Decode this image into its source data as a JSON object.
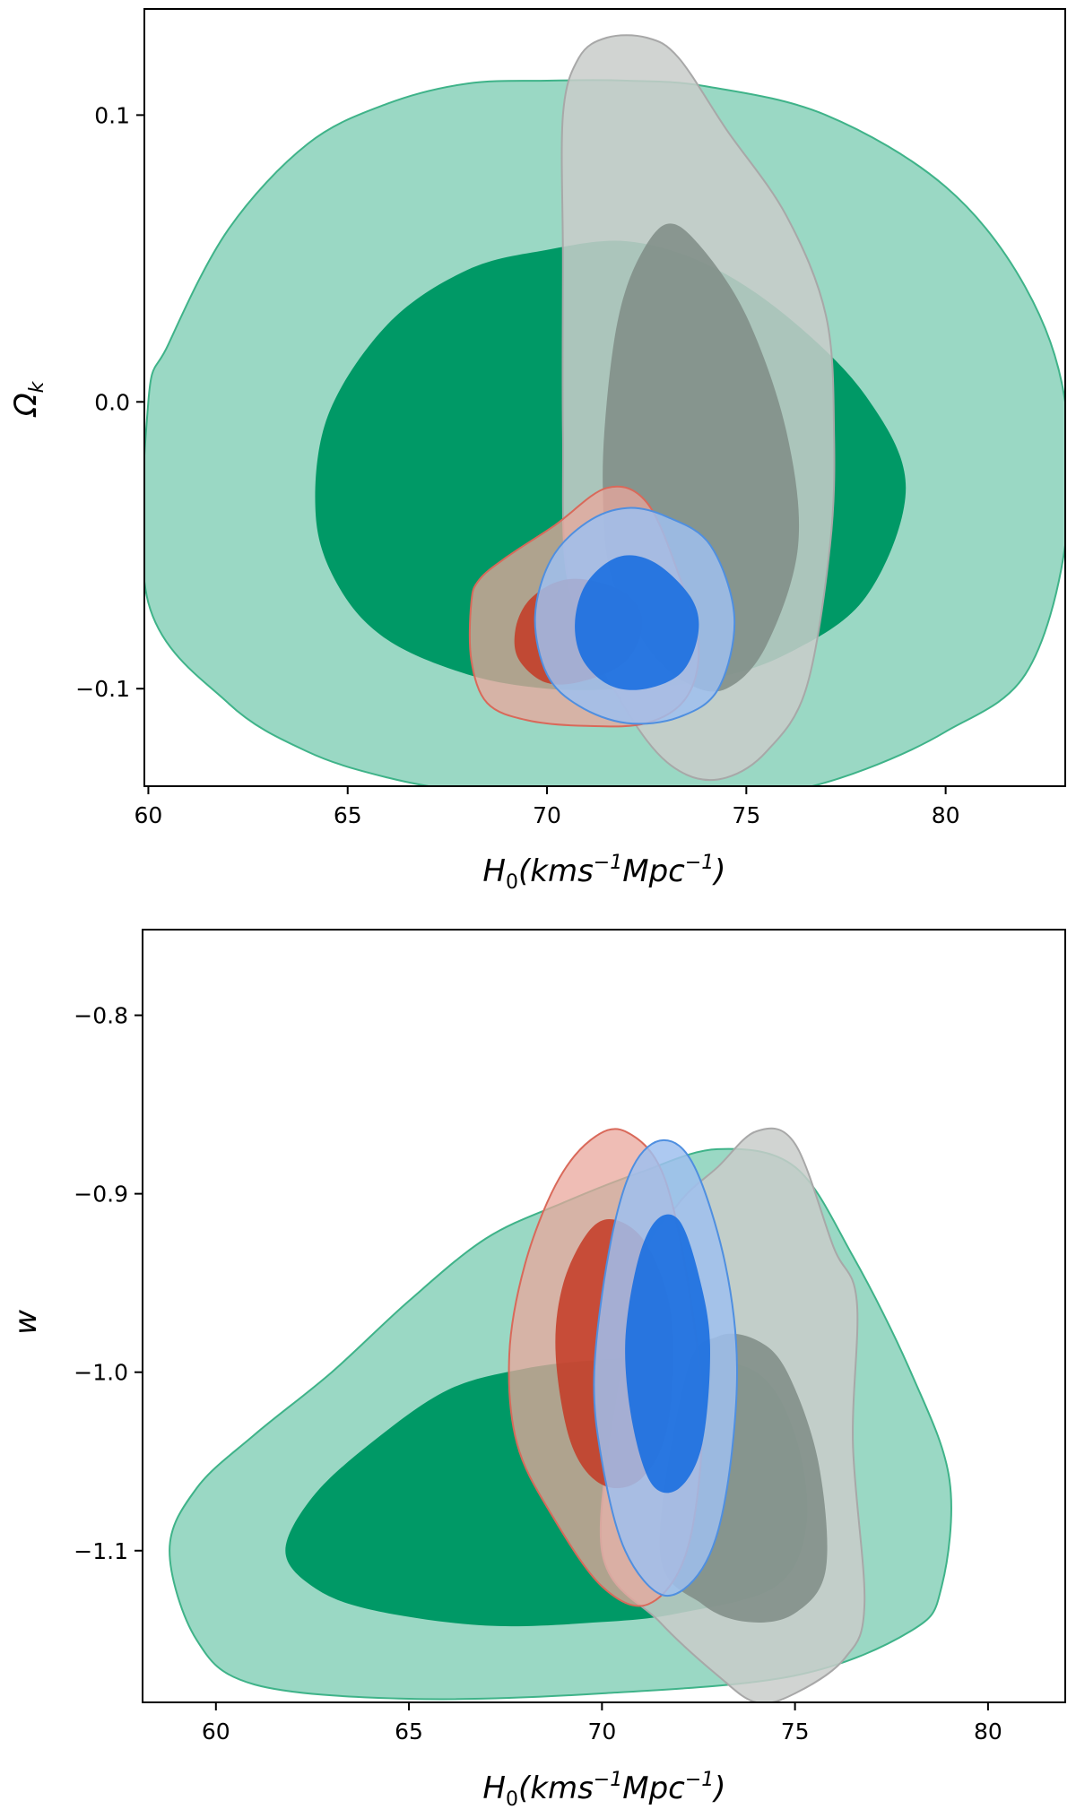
{
  "chart_data": [
    {
      "type": "contour",
      "xlabel": "H_0(kms^{-1}Mpc^{-1})",
      "ylabel": "Ω_k",
      "xlim": [
        59.9,
        83.0
      ],
      "ylim": [
        -0.134,
        0.137
      ],
      "xticks": [
        60,
        65,
        70,
        75,
        80
      ],
      "yticks": [
        -0.1,
        0.0,
        0.1
      ],
      "xtick_labels": [
        "60",
        "65",
        "70",
        "75",
        "80"
      ],
      "ytick_labels": [
        "−0.1",
        "0.0",
        "0.1"
      ],
      "colors": {
        "green": "#009966",
        "gray": "#8c8c8c",
        "red": "#cc3322",
        "blue": "#1f6fd6"
      },
      "series": [
        {
          "color": "green",
          "outer": [
            [
              60.0,
              -0.07
            ],
            [
              62,
              -0.105
            ],
            [
              64,
              -0.122
            ],
            [
              66,
              -0.131
            ],
            [
              68,
              -0.136
            ],
            [
              70,
              -0.138
            ],
            [
              72,
              -0.139
            ],
            [
              74,
              -0.138
            ],
            [
              76,
              -0.136
            ],
            [
              78,
              -0.128
            ],
            [
              80,
              -0.115
            ],
            [
              82,
              -0.095
            ],
            [
              83,
              -0.05
            ],
            [
              83,
              0.0
            ],
            [
              82,
              0.04
            ],
            [
              80,
              0.075
            ],
            [
              77,
              0.1
            ],
            [
              74,
              0.11
            ],
            [
              72,
              0.112
            ],
            [
              70,
              0.112
            ],
            [
              68,
              0.111
            ],
            [
              66,
              0.104
            ],
            [
              64,
              0.09
            ],
            [
              62,
              0.06
            ],
            [
              60.5,
              0.02
            ],
            [
              60,
              0.0
            ]
          ],
          "inner": [
            [
              64.2,
              -0.04
            ],
            [
              64.8,
              -0.065
            ],
            [
              66,
              -0.083
            ],
            [
              68,
              -0.095
            ],
            [
              70,
              -0.1
            ],
            [
              72,
              -0.1
            ],
            [
              74,
              -0.097
            ],
            [
              76,
              -0.088
            ],
            [
              78,
              -0.068
            ],
            [
              79,
              -0.03
            ],
            [
              78,
              0.002
            ],
            [
              76,
              0.03
            ],
            [
              74,
              0.048
            ],
            [
              72,
              0.056
            ],
            [
              70,
              0.053
            ],
            [
              68,
              0.046
            ],
            [
              66,
              0.027
            ],
            [
              64.5,
              -0.005
            ]
          ]
        },
        {
          "color": "gray",
          "outer": [
            [
              70.4,
              0.1
            ],
            [
              70.8,
              0.12
            ],
            [
              71.5,
              0.127
            ],
            [
              72.5,
              0.127
            ],
            [
              73.3,
              0.12
            ],
            [
              74.5,
              0.095
            ],
            [
              76,
              0.065
            ],
            [
              77,
              0.03
            ],
            [
              77.2,
              -0.01
            ],
            [
              77.1,
              -0.05
            ],
            [
              76.5,
              -0.1
            ],
            [
              75.5,
              -0.122
            ],
            [
              74.5,
              -0.131
            ],
            [
              73.5,
              -0.13
            ],
            [
              72.5,
              -0.118
            ],
            [
              71.3,
              -0.09
            ],
            [
              70.5,
              -0.06
            ],
            [
              70.4,
              -0.01
            ],
            [
              70.4,
              0.05
            ]
          ],
          "inner": [
            [
              71.5,
              0.0
            ],
            [
              71.8,
              0.03
            ],
            [
              72.3,
              0.05
            ],
            [
              73,
              0.062
            ],
            [
              73.8,
              0.055
            ],
            [
              75,
              0.03
            ],
            [
              76,
              -0.01
            ],
            [
              76.3,
              -0.05
            ],
            [
              75.5,
              -0.085
            ],
            [
              74.5,
              -0.1
            ],
            [
              73.5,
              -0.098
            ],
            [
              72.5,
              -0.085
            ],
            [
              71.6,
              -0.06
            ],
            [
              71.4,
              -0.03
            ]
          ]
        },
        {
          "color": "red",
          "outer": [
            [
              68.1,
              -0.07
            ],
            [
              68.3,
              -0.062
            ],
            [
              69,
              -0.054
            ],
            [
              70.2,
              -0.043
            ],
            [
              71.5,
              -0.03
            ],
            [
              72.5,
              -0.035
            ],
            [
              73.3,
              -0.06
            ],
            [
              73.8,
              -0.085
            ],
            [
              73.5,
              -0.103
            ],
            [
              72.5,
              -0.112
            ],
            [
              71,
              -0.113
            ],
            [
              69.5,
              -0.111
            ],
            [
              68.5,
              -0.105
            ],
            [
              68.1,
              -0.09
            ]
          ],
          "inner": [
            [
              69.2,
              -0.08
            ],
            [
              69.5,
              -0.07
            ],
            [
              70.2,
              -0.063
            ],
            [
              71,
              -0.062
            ],
            [
              72,
              -0.067
            ],
            [
              72.4,
              -0.077
            ],
            [
              72,
              -0.09
            ],
            [
              71,
              -0.097
            ],
            [
              70,
              -0.098
            ],
            [
              69.3,
              -0.09
            ]
          ]
        },
        {
          "color": "blue",
          "outer": [
            [
              69.7,
              -0.075
            ],
            [
              70.1,
              -0.055
            ],
            [
              71,
              -0.042
            ],
            [
              72,
              -0.037
            ],
            [
              73,
              -0.04
            ],
            [
              74.1,
              -0.05
            ],
            [
              74.7,
              -0.075
            ],
            [
              74.3,
              -0.1
            ],
            [
              73.3,
              -0.11
            ],
            [
              72,
              -0.112
            ],
            [
              70.8,
              -0.106
            ],
            [
              70,
              -0.095
            ]
          ],
          "inner": [
            [
              70.7,
              -0.077
            ],
            [
              71,
              -0.063
            ],
            [
              71.8,
              -0.054
            ],
            [
              72.7,
              -0.056
            ],
            [
              73.6,
              -0.068
            ],
            [
              73.8,
              -0.08
            ],
            [
              73.4,
              -0.094
            ],
            [
              72.5,
              -0.1
            ],
            [
              71.6,
              -0.099
            ],
            [
              70.9,
              -0.09
            ]
          ]
        }
      ]
    },
    {
      "type": "contour",
      "xlabel": "H_0(kms^{-1}Mpc^{-1})",
      "ylabel": "w",
      "xlim": [
        58.1,
        82.0
      ],
      "ylim": [
        -1.185,
        -0.752
      ],
      "xticks": [
        60,
        65,
        70,
        75,
        80
      ],
      "yticks": [
        -0.8,
        -0.9,
        -1.0,
        -1.1
      ],
      "xtick_labels": [
        "60",
        "65",
        "70",
        "75",
        "80"
      ],
      "ytick_labels": [
        "−0.8",
        "−0.9",
        "−1.0",
        "−1.1"
      ],
      "colors": {
        "green": "#009966",
        "gray": "#8c8c8c",
        "red": "#cc3322",
        "blue": "#1f6fd6"
      },
      "series": [
        {
          "color": "green",
          "outer": [
            [
              58.8,
              -1.1
            ],
            [
              59.5,
              -1.065
            ],
            [
              61,
              -1.035
            ],
            [
              63,
              -1.0
            ],
            [
              65,
              -0.96
            ],
            [
              67,
              -0.925
            ],
            [
              69,
              -0.905
            ],
            [
              71,
              -0.888
            ],
            [
              73,
              -0.875
            ],
            [
              75,
              -0.885
            ],
            [
              76.5,
              -0.935
            ],
            [
              78,
              -1.0
            ],
            [
              79,
              -1.06
            ],
            [
              78.8,
              -1.12
            ],
            [
              78,
              -1.145
            ],
            [
              75,
              -1.17
            ],
            [
              70,
              -1.18
            ],
            [
              65,
              -1.183
            ],
            [
              61,
              -1.175
            ],
            [
              59.5,
              -1.15
            ]
          ],
          "inner": [
            [
              61.8,
              -1.1
            ],
            [
              62.5,
              -1.07
            ],
            [
              64,
              -1.04
            ],
            [
              66,
              -1.01
            ],
            [
              68,
              -0.998
            ],
            [
              70,
              -0.993
            ],
            [
              72,
              -0.992
            ],
            [
              74,
              -1.0
            ],
            [
              75,
              -1.035
            ],
            [
              75.3,
              -1.085
            ],
            [
              74.5,
              -1.12
            ],
            [
              72,
              -1.135
            ],
            [
              70,
              -1.14
            ],
            [
              67,
              -1.142
            ],
            [
              64,
              -1.133
            ],
            [
              62.5,
              -1.12
            ]
          ]
        },
        {
          "color": "gray",
          "outer": [
            [
              70,
              -1.1
            ],
            [
              70.5,
              -1.0
            ],
            [
              71,
              -0.94
            ],
            [
              72,
              -0.905
            ],
            [
              73,
              -0.885
            ],
            [
              74,
              -0.865
            ],
            [
              75,
              -0.872
            ],
            [
              76,
              -0.93
            ],
            [
              76.6,
              -0.96
            ],
            [
              76.5,
              -1.04
            ],
            [
              76.8,
              -1.13
            ],
            [
              76.3,
              -1.16
            ],
            [
              75,
              -1.18
            ],
            [
              74,
              -1.185
            ],
            [
              73,
              -1.17
            ],
            [
              71.5,
              -1.14
            ]
          ],
          "inner": [
            [
              71.5,
              -1.1
            ],
            [
              72.2,
              -1.0
            ],
            [
              73,
              -0.98
            ],
            [
              74,
              -0.982
            ],
            [
              74.8,
              -1.0
            ],
            [
              75.6,
              -1.05
            ],
            [
              75.8,
              -1.11
            ],
            [
              75,
              -1.135
            ],
            [
              73.8,
              -1.14
            ],
            [
              72.6,
              -1.13
            ]
          ]
        },
        {
          "color": "red",
          "outer": [
            [
              67.6,
              -0.99
            ],
            [
              68,
              -0.94
            ],
            [
              68.8,
              -0.895
            ],
            [
              69.7,
              -0.87
            ],
            [
              70.6,
              -0.865
            ],
            [
              71.6,
              -0.89
            ],
            [
              72.3,
              -0.96
            ],
            [
              72.6,
              -1.03
            ],
            [
              72.2,
              -1.1
            ],
            [
              71.2,
              -1.13
            ],
            [
              70,
              -1.12
            ],
            [
              68.7,
              -1.08
            ],
            [
              67.8,
              -1.04
            ]
          ],
          "inner": [
            [
              68.8,
              -0.99
            ],
            [
              69,
              -0.95
            ],
            [
              69.7,
              -0.92
            ],
            [
              70.4,
              -0.915
            ],
            [
              71.2,
              -0.93
            ],
            [
              71.8,
              -0.97
            ],
            [
              71.7,
              -1.03
            ],
            [
              71,
              -1.06
            ],
            [
              70,
              -1.063
            ],
            [
              69.2,
              -1.04
            ]
          ]
        },
        {
          "color": "blue",
          "outer": [
            [
              69.8,
              -1.0
            ],
            [
              70.2,
              -0.93
            ],
            [
              70.8,
              -0.885
            ],
            [
              71.6,
              -0.87
            ],
            [
              72.4,
              -0.885
            ],
            [
              73.2,
              -0.94
            ],
            [
              73.5,
              -1.0
            ],
            [
              73.2,
              -1.07
            ],
            [
              72.6,
              -1.11
            ],
            [
              71.6,
              -1.125
            ],
            [
              70.6,
              -1.1
            ],
            [
              70,
              -1.05
            ]
          ],
          "inner": [
            [
              70.6,
              -0.985
            ],
            [
              70.9,
              -0.94
            ],
            [
              71.4,
              -0.915
            ],
            [
              72,
              -0.915
            ],
            [
              72.5,
              -0.945
            ],
            [
              72.8,
              -0.985
            ],
            [
              72.6,
              -1.04
            ],
            [
              72,
              -1.065
            ],
            [
              71.3,
              -1.063
            ],
            [
              70.8,
              -1.03
            ]
          ]
        }
      ]
    }
  ]
}
